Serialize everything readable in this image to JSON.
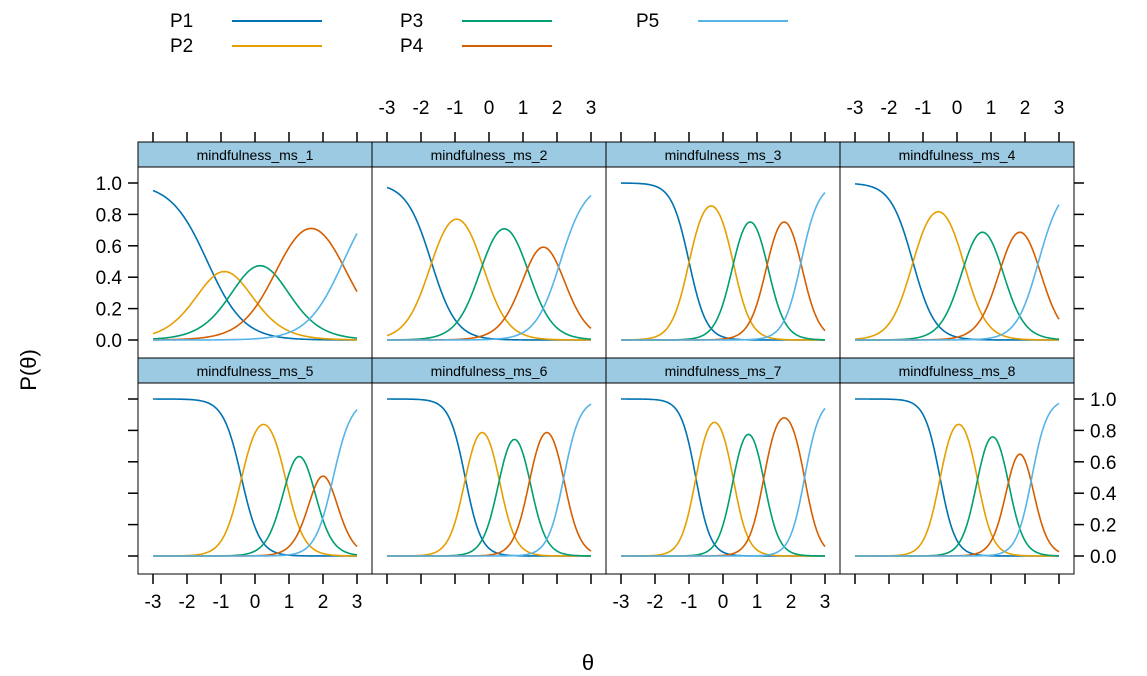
{
  "chart_data": {
    "type": "line",
    "xlabel": "θ",
    "ylabel": "P(θ)",
    "xlim": [
      -3,
      3
    ],
    "ylim": [
      0,
      1
    ],
    "x_ticks": [
      -3,
      -2,
      -1,
      0,
      1,
      2,
      3
    ],
    "y_ticks": [
      0.0,
      0.2,
      0.4,
      0.6,
      0.8,
      1.0
    ],
    "x_tick_labels": [
      "-3",
      "-2",
      "-1",
      "0",
      "1",
      "2",
      "3"
    ],
    "y_tick_labels": [
      "0.0",
      "0.2",
      "0.4",
      "0.6",
      "0.8",
      "1.0"
    ],
    "legend": {
      "placement": "top",
      "entries": [
        {
          "name": "P1",
          "color": "#0072B2"
        },
        {
          "name": "P2",
          "color": "#E69F00"
        },
        {
          "name": "P3",
          "color": "#009E73"
        },
        {
          "name": "P4",
          "color": "#D55E00"
        },
        {
          "name": "P5",
          "color": "#56B4E9"
        }
      ]
    },
    "panels": [
      {
        "title": "mindfulness_ms_1",
        "a": 1.1,
        "b": [
          -1.4,
          -0.4,
          0.7,
          2.6
        ]
      },
      {
        "title": "mindfulness_ms_2",
        "a": 1.6,
        "b": [
          -1.7,
          -0.2,
          1.1,
          2.1
        ]
      },
      {
        "title": "mindfulness_ms_3",
        "a": 2.3,
        "b": [
          -1.0,
          0.3,
          1.3,
          2.3
        ]
      },
      {
        "title": "mindfulness_ms_4",
        "a": 1.8,
        "b": [
          -1.3,
          0.2,
          1.3,
          2.4
        ]
      },
      {
        "title": "mindfulness_ms_5",
        "a": 2.2,
        "b": [
          -0.4,
          0.9,
          1.7,
          2.3
        ]
      },
      {
        "title": "mindfulness_ms_6",
        "a": 2.5,
        "b": [
          -0.7,
          0.3,
          1.2,
          2.2
        ]
      },
      {
        "title": "mindfulness_ms_7",
        "a": 2.7,
        "b": [
          -0.8,
          0.3,
          1.2,
          2.4
        ]
      },
      {
        "title": "mindfulness_ms_8",
        "a": 2.6,
        "b": [
          -0.5,
          0.6,
          1.5,
          2.2
        ]
      }
    ]
  }
}
